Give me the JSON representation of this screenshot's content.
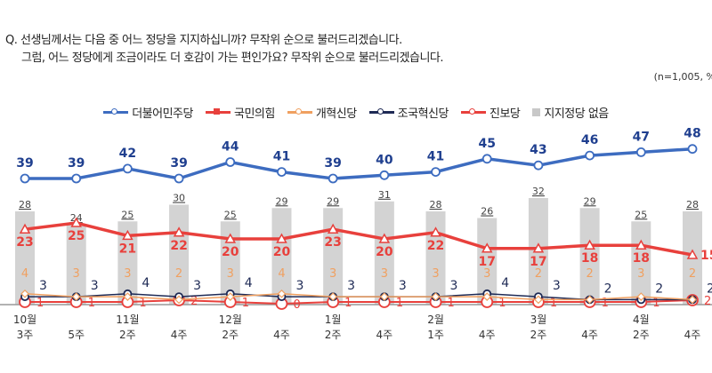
{
  "question": {
    "line1": "Q. 선생님께서는 다음 중 어느 정당을 지지하십니까? 무작위 순으로 불러드리겠습니다.",
    "line2": "그럼, 어느 정당에게 조금이라도 더 호감이 가는 편인가요? 무작위 순으로 불러드리겠습니다.",
    "sample_note": "(n=1,005, %"
  },
  "chart_data": {
    "type": "line",
    "categories": [
      [
        "10월",
        "3주"
      ],
      [
        "",
        "5주"
      ],
      [
        "11월",
        "2주"
      ],
      [
        "",
        "4주"
      ],
      [
        "12월",
        "2주"
      ],
      [
        "",
        "4주"
      ],
      [
        "1월",
        "2주"
      ],
      [
        "",
        "4주"
      ],
      [
        "2월",
        "1주"
      ],
      [
        "",
        "4주"
      ],
      [
        "3월",
        "2주"
      ],
      [
        "",
        "4주"
      ],
      [
        "4월",
        "2주"
      ],
      [
        "",
        "4주"
      ]
    ],
    "series": [
      {
        "name": "더불어민주당",
        "type": "line",
        "color": "#3d6cc0",
        "values": [
          39,
          39,
          42,
          39,
          44,
          41,
          39,
          40,
          41,
          45,
          43,
          46,
          47,
          48
        ]
      },
      {
        "name": "국민의힘",
        "type": "line",
        "color": "#e8403c",
        "values": [
          23,
          25,
          21,
          22,
          20,
          20,
          23,
          20,
          22,
          17,
          17,
          18,
          18,
          15
        ]
      },
      {
        "name": "개혁신당",
        "type": "line",
        "color": "#f0a060",
        "values": [
          4,
          3,
          3,
          2,
          3,
          4,
          3,
          3,
          3,
          3,
          2,
          2,
          3,
          2
        ]
      },
      {
        "name": "조국혁신당",
        "type": "line",
        "color": "#1e2a55",
        "values": [
          3,
          3,
          4,
          3,
          4,
          3,
          3,
          3,
          3,
          4,
          3,
          2,
          2,
          2
        ]
      },
      {
        "name": "진보당",
        "type": "line",
        "color": "#e8403c",
        "values": [
          1,
          1,
          1,
          2,
          1,
          0,
          1,
          1,
          1,
          1,
          1,
          1,
          1,
          2
        ]
      },
      {
        "name": "지지정당 없음",
        "type": "bar",
        "color": "#d0d0d0",
        "values": [
          28,
          24,
          25,
          30,
          25,
          29,
          29,
          31,
          28,
          26,
          32,
          29,
          25,
          28
        ]
      }
    ],
    "unit": "%"
  }
}
